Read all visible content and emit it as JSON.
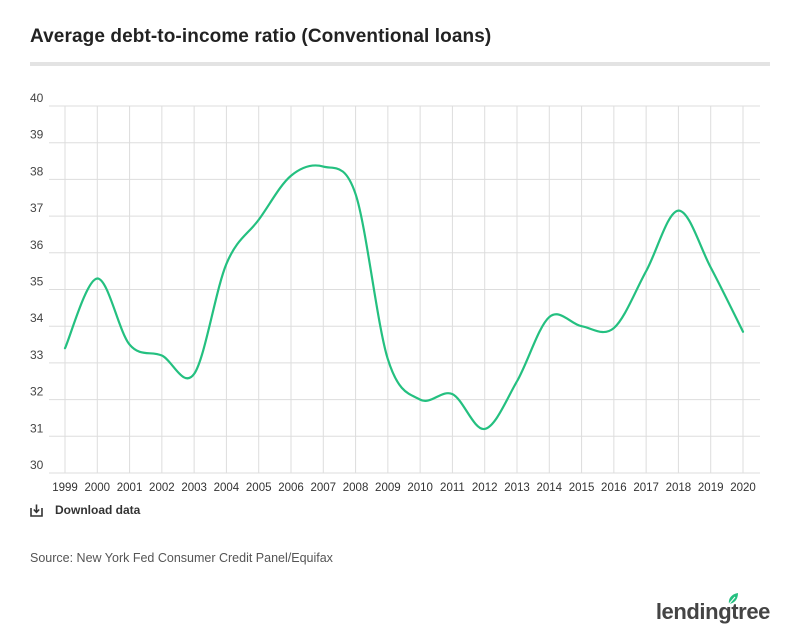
{
  "title": "Average debt-to-income ratio (Conventional loans)",
  "download_label": "Download data",
  "source": "Source: New York Fed Consumer Credit Panel/Equifax",
  "logo_text": "lendingtree",
  "colors": {
    "line": "#24c080",
    "grid": "#dddddd",
    "logo_leaf": "#24c080"
  },
  "icons": {
    "download": "download-icon",
    "logo_leaf": "leaf-icon"
  },
  "chart_data": {
    "type": "line",
    "title": "Average debt-to-income ratio (Conventional loans)",
    "xlabel": "",
    "ylabel": "",
    "x": [
      "1999",
      "2000",
      "2001",
      "2002",
      "2003",
      "2004",
      "2005",
      "2006",
      "2007",
      "2008",
      "2009",
      "2010",
      "2011",
      "2012",
      "2013",
      "2014",
      "2015",
      "2016",
      "2017",
      "2018",
      "2019",
      "2020"
    ],
    "series": [
      {
        "values": [
          33.4,
          35.3,
          33.5,
          33.2,
          32.7,
          35.7,
          36.9,
          38.1,
          38.35,
          37.6,
          33.1,
          32.0,
          32.15,
          31.2,
          32.5,
          34.25,
          34.0,
          33.95,
          35.5,
          37.15,
          35.6,
          33.85
        ]
      }
    ],
    "ylim": [
      30,
      40
    ],
    "yticks": [
      "30",
      "31",
      "32",
      "33",
      "34",
      "35",
      "36",
      "37",
      "38",
      "39",
      "40"
    ],
    "grid": true,
    "legend": "none"
  }
}
